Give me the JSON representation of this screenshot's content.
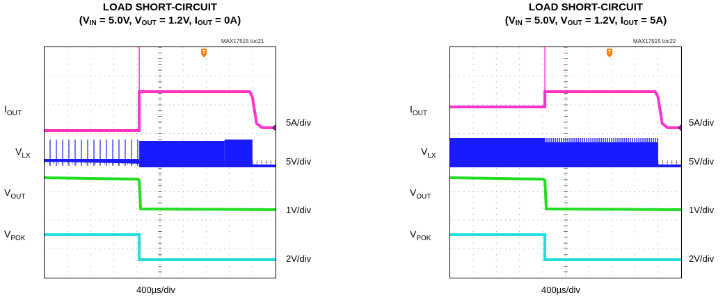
{
  "chart_data": [
    {
      "type": "line",
      "title": "LOAD SHORT-CIRCUIT",
      "subtitle": {
        "vin": "IN",
        "vin_val": " = 5.0V, V",
        "vout": "OUT",
        "vout_val": " = 1.2V, I",
        "iout": "OUT",
        "iout_val": " = 0A)",
        "prefix": "(V"
      },
      "figure_tag": "MAX17515 toc21",
      "timebase": "400µs/div",
      "trigger_marker": "T",
      "x_divisions": 10,
      "y_divisions": 8,
      "channels": [
        {
          "name": "IOUT",
          "scale": "5A/div",
          "color": "#ff33cc"
        },
        {
          "name": "VLX",
          "scale": "5V/div",
          "color": "#1a1aff"
        },
        {
          "name": "VOUT",
          "scale": "1V/div",
          "color": "#22dd22"
        },
        {
          "name": "VPOK",
          "scale": "2V/div",
          "color": "#22dddd"
        }
      ],
      "short_start_div": 4.1,
      "short_end_div": 9.0
    },
    {
      "type": "line",
      "title": "LOAD SHORT-CIRCUIT",
      "subtitle": {
        "vin": "IN",
        "vin_val": " = 5.0V, V",
        "vout": "OUT",
        "vout_val": " = 1.2V, I",
        "iout": "OUT",
        "iout_val": " = 5A)",
        "prefix": "(V"
      },
      "figure_tag": "MAX17515 toc22",
      "timebase": "400µs/div",
      "trigger_marker": "T",
      "x_divisions": 10,
      "y_divisions": 8,
      "channels": [
        {
          "name": "IOUT",
          "scale": "5A/div",
          "color": "#ff33cc"
        },
        {
          "name": "VLX",
          "scale": "5V/div",
          "color": "#1a1aff"
        },
        {
          "name": "VOUT",
          "scale": "1V/div",
          "color": "#22dd22"
        },
        {
          "name": "VPOK",
          "scale": "2V/div",
          "color": "#22dddd"
        }
      ],
      "short_start_div": 4.1,
      "short_end_div": 9.0
    }
  ]
}
